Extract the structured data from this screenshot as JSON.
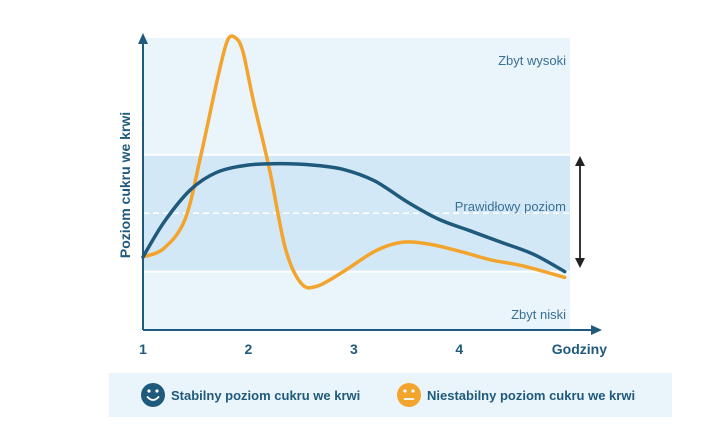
{
  "chart_data": {
    "type": "line",
    "title": "",
    "ylabel": "Poziom cukru we krwi",
    "xlabel": "Godziny",
    "x_ticks": [
      "1",
      "2",
      "3",
      "4"
    ],
    "xlim": [
      1,
      5.05
    ],
    "ylim": [
      0,
      100
    ],
    "zones": [
      {
        "label": "Zbyt wysoki",
        "from": 60,
        "to": 100,
        "color": "#e9f4fb"
      },
      {
        "label": "Prawidłowy poziom",
        "from": 20,
        "to": 60,
        "color": "#d3e8f6"
      },
      {
        "label": "Zbyt niski",
        "from": 0,
        "to": 20,
        "color": "#e9f4fb"
      }
    ],
    "target_line": 40,
    "series": [
      {
        "name": "Stabilny poziom cukru we krwi",
        "color": "#1f5a7c",
        "x": [
          1.0,
          1.2,
          1.45,
          1.7,
          2.0,
          2.3,
          2.6,
          2.9,
          3.2,
          3.5,
          3.8,
          4.1,
          4.4,
          4.7,
          5.0
        ],
        "y": [
          25,
          37,
          48,
          54,
          56.5,
          57,
          56.5,
          55,
          51,
          44,
          38,
          34,
          30,
          26,
          20
        ]
      },
      {
        "name": "Niestabilny poziom cukru we krwi",
        "color": "#f3a42c",
        "x": [
          1.0,
          1.2,
          1.4,
          1.55,
          1.7,
          1.8,
          1.88,
          1.95,
          2.05,
          2.2,
          2.35,
          2.5,
          2.65,
          2.9,
          3.2,
          3.45,
          3.7,
          4.0,
          4.3,
          4.6,
          5.0
        ],
        "y": [
          25,
          28,
          38,
          60,
          85,
          99,
          100,
          95,
          78,
          55,
          28,
          16,
          15,
          20,
          27,
          30,
          29.5,
          27,
          24,
          22,
          18
        ]
      }
    ],
    "legend": {
      "position": "bottom",
      "items": [
        {
          "label": "Stabilny poziom cukru we krwi",
          "icon": "happy-face-icon",
          "color": "#1f5a7c"
        },
        {
          "label": "Niestabilny poziom cukru we krwi",
          "icon": "neutral-face-icon",
          "color": "#f3a42c"
        }
      ]
    },
    "grid": false,
    "axis_color": "#1f5a7c",
    "label_color": "#3a6f96"
  }
}
